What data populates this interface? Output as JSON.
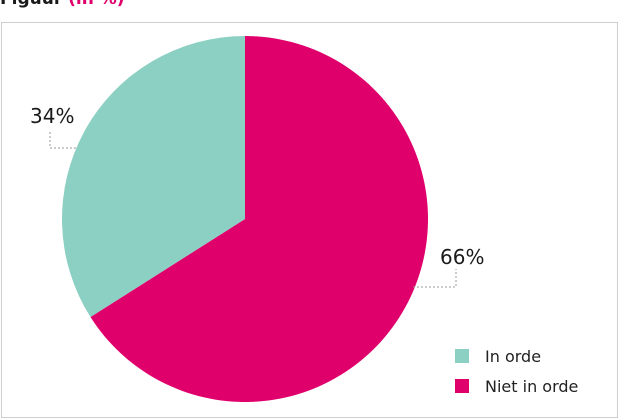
{
  "header": {
    "title_left": "Figuur",
    "title_accent": "(in %)"
  },
  "colors": {
    "in_orde": "#8ccfc3",
    "niet_in_orde": "#e0006c",
    "leader": "#999999",
    "border": "#cfcfcf"
  },
  "chart_data": {
    "type": "pie",
    "slices": [
      {
        "label": "In orde",
        "value": 34,
        "display": "34%",
        "color": "#8ccfc3"
      },
      {
        "label": "Niet in orde",
        "value": 66,
        "display": "66%",
        "color": "#e0006c"
      }
    ],
    "start_angle_deg": 0,
    "direction": "clockwise-for-second-slice",
    "legend_position": "bottom-right"
  },
  "legend": {
    "items": [
      {
        "label": "In orde",
        "color": "#8ccfc3"
      },
      {
        "label": "Niet in orde",
        "color": "#e0006c"
      }
    ]
  }
}
